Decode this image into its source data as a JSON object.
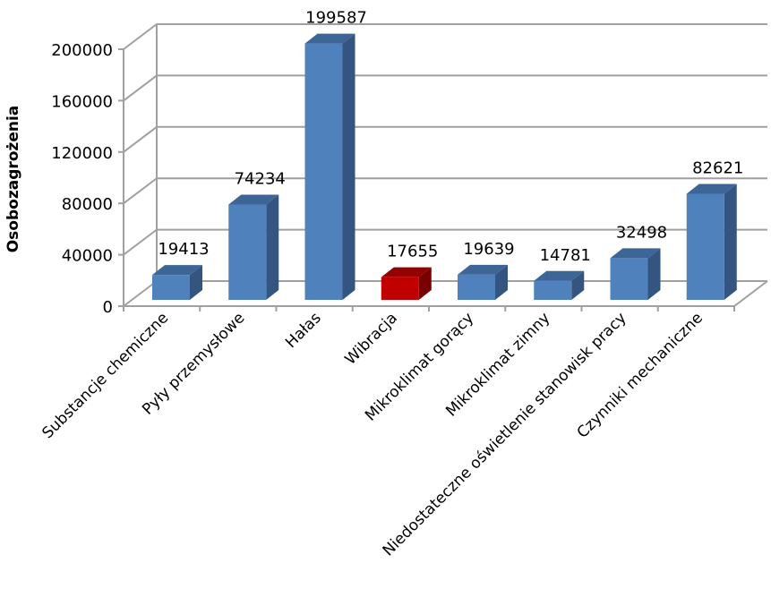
{
  "chart_data": {
    "type": "bar",
    "style": "3d-column",
    "title": "",
    "xlabel": "",
    "ylabel": "Osobozagrożenia",
    "ylim": [
      0,
      200000
    ],
    "yticks": [
      "0",
      "40000",
      "80000",
      "120000",
      "160000",
      "200000"
    ],
    "grid": true,
    "legend": "none",
    "categories": [
      "Substancje chemiczne",
      "Pyły przemysłowe",
      "Hałas",
      "Wibracja",
      "Mikroklimat  gorący",
      "Mikroklimat  zimny",
      "Niedostateczne oświetlenie  stanowisk pracy",
      "Czynniki mechaniczne"
    ],
    "values": [
      19413,
      74234,
      199587,
      17655,
      19639,
      14781,
      32498,
      82621
    ],
    "data_labels": [
      "19413",
      "74234",
      "199587",
      "17655",
      "19639",
      "14781",
      "32498",
      "82621"
    ],
    "highlighted_index": 3,
    "colors": {
      "bar": "#4F81BD",
      "bar_side": "#34557F",
      "bar_top": "#3D6596",
      "highlight": "#C00000",
      "highlight_side": "#780000",
      "highlight_top": "#950000",
      "grid": "#A0A0A0"
    }
  }
}
